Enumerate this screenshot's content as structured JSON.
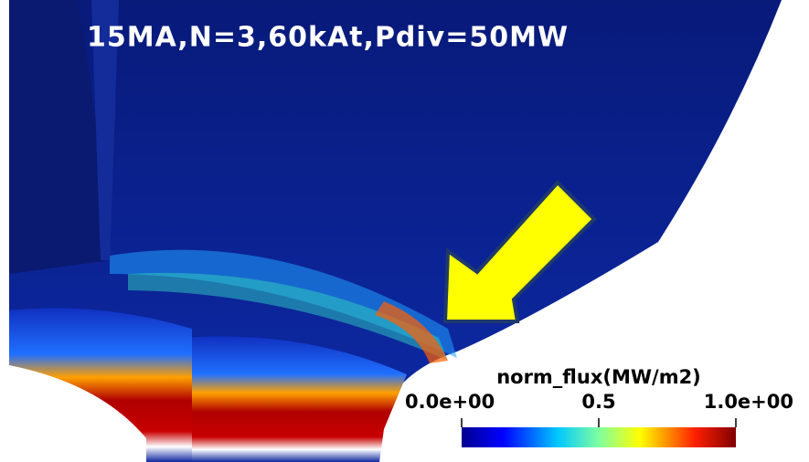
{
  "title": "15MA,N=3,60kAt,Pdiv=50MW",
  "colorbar": {
    "title": "norm_flux(MW/m2)",
    "range": [
      0,
      1
    ],
    "ticks": [
      {
        "value": 0,
        "label": "0.0e+00"
      },
      0.5,
      {
        "value": 1,
        "label": "1.0e+00"
      }
    ]
  }
}
